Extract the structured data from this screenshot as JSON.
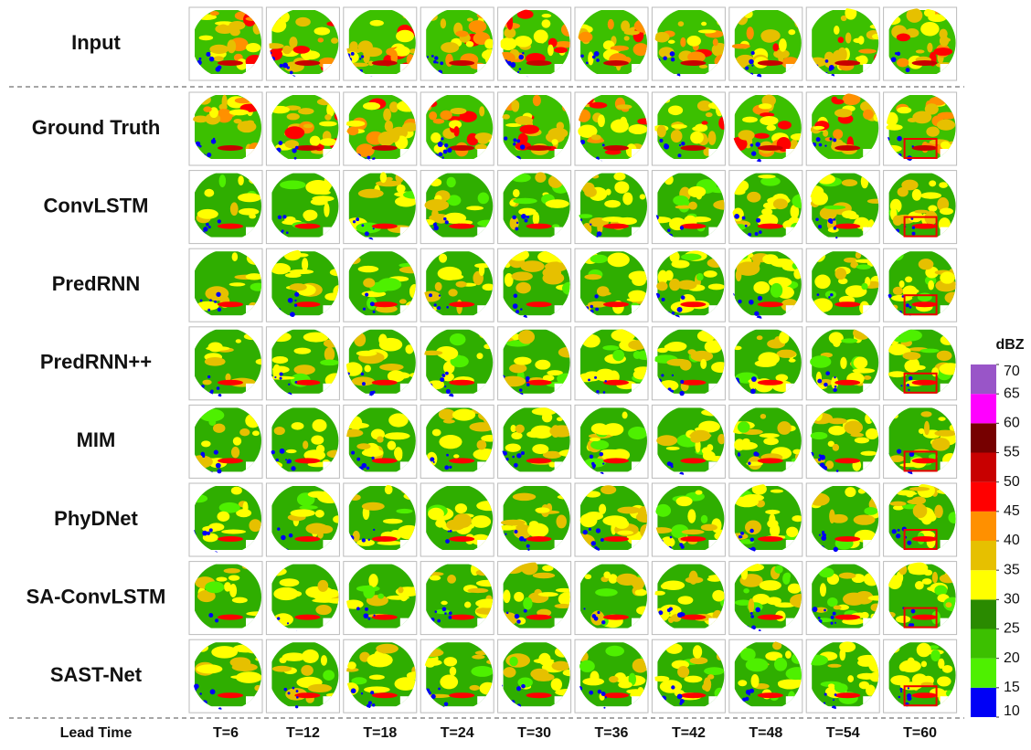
{
  "rows": [
    "Input",
    "Ground Truth",
    "ConvLSTM",
    "PredRNN",
    "PredRNN++",
    "MIM",
    "PhyDNet",
    "SA-ConvLSTM",
    "SAST-Net"
  ],
  "lead_time_label": "Lead Time",
  "columns": [
    "T=6",
    "T=12",
    "T=18",
    "T=24",
    "T=30",
    "T=36",
    "T=42",
    "T=48",
    "T=54",
    "T=60"
  ],
  "colorbar": {
    "title": "dBZ",
    "ticks": [
      10,
      15,
      20,
      25,
      30,
      35,
      40,
      45,
      50,
      55,
      60,
      65,
      70
    ],
    "colors": [
      "#0000f6",
      "#4ef000",
      "#3cc000",
      "#2a8a00",
      "#ffff00",
      "#e6c000",
      "#ff9000",
      "#ff0000",
      "#c80000",
      "#760000",
      "#ff00ff",
      "#9955c8"
    ]
  }
}
